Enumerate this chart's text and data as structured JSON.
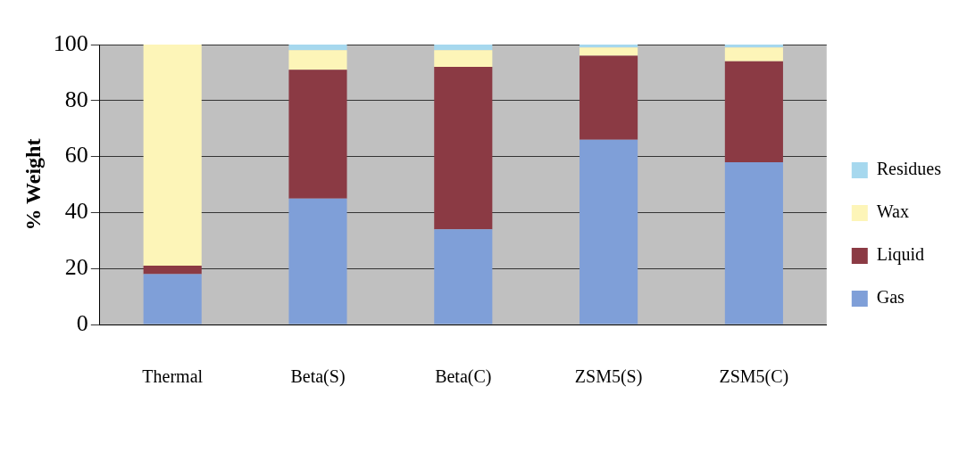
{
  "chart_data": {
    "type": "bar",
    "stacked": true,
    "ylabel": "% Weight",
    "categories": [
      "Thermal",
      "Beta(S)",
      "Beta(C)",
      "ZSM5(S)",
      "ZSM5(C)"
    ],
    "series": [
      {
        "name": "Gas",
        "color": "#7f9fd8",
        "values": [
          18,
          45,
          34,
          66,
          58
        ]
      },
      {
        "name": "Liquid",
        "color": "#8b3a44",
        "values": [
          3,
          46,
          58,
          30,
          36
        ]
      },
      {
        "name": "Wax",
        "color": "#fdf5b8",
        "values": [
          79,
          7,
          6,
          3,
          5
        ]
      },
      {
        "name": "Residues",
        "color": "#a6d8ee",
        "values": [
          0,
          2,
          2,
          1,
          1
        ]
      }
    ],
    "ylim": [
      0,
      100
    ],
    "yticks": [
      0,
      20,
      40,
      60,
      80,
      100
    ],
    "grid": "y",
    "legend": "right"
  }
}
